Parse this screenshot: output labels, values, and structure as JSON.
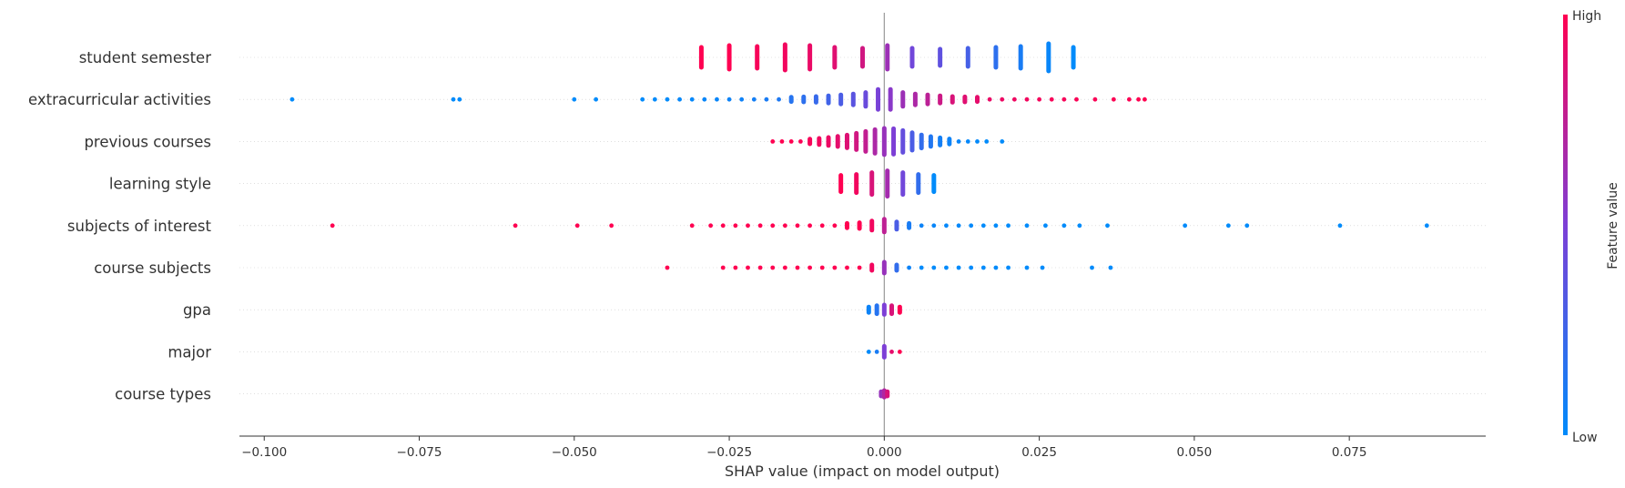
{
  "chart_data": {
    "type": "scatter",
    "subtype": "shap-beeswarm",
    "title": "",
    "xlabel": "SHAP value (impact on model output)",
    "xlim": [
      -0.104,
      0.097
    ],
    "xticks": [
      -0.1,
      -0.075,
      -0.05,
      -0.025,
      0.0,
      0.025,
      0.05,
      0.075
    ],
    "xtick_labels": [
      "−0.100",
      "−0.075",
      "−0.050",
      "−0.025",
      "0.000",
      "0.025",
      "0.050",
      "0.075"
    ],
    "zero_line": 0.0,
    "grid": false,
    "colorbar": {
      "label": "Feature value",
      "high_label": "High",
      "low_label": "Low",
      "low_color": "#008bfb",
      "mid_color": "#7d3fd6",
      "high_color": "#ff0051"
    },
    "features": [
      {
        "name": "student semester",
        "points": [
          [
            -0.0295,
            1.0,
            0.55
          ],
          [
            -0.025,
            1.0,
            0.65
          ],
          [
            -0.0205,
            0.97,
            0.6
          ],
          [
            -0.016,
            0.95,
            0.7
          ],
          [
            -0.012,
            0.92,
            0.65
          ],
          [
            -0.008,
            0.88,
            0.55
          ],
          [
            -0.0035,
            0.82,
            0.5
          ],
          [
            0.0005,
            0.62,
            0.65
          ],
          [
            0.0045,
            0.45,
            0.5
          ],
          [
            0.009,
            0.38,
            0.45
          ],
          [
            0.0135,
            0.28,
            0.5
          ],
          [
            0.018,
            0.18,
            0.55
          ],
          [
            0.022,
            0.1,
            0.6
          ],
          [
            0.0265,
            0.03,
            0.75
          ],
          [
            0.0305,
            0.0,
            0.55
          ]
        ]
      },
      {
        "name": "extracurricular activities",
        "points": [
          [
            -0.0955,
            0.0,
            0.02
          ],
          [
            -0.0695,
            0.0,
            0.02
          ],
          [
            -0.0685,
            0.0,
            0.02
          ],
          [
            -0.05,
            0.0,
            0.02
          ],
          [
            -0.0465,
            0.0,
            0.02
          ],
          [
            -0.039,
            0.0,
            0.03
          ],
          [
            -0.037,
            0.0,
            0.03
          ],
          [
            -0.035,
            0.0,
            0.03
          ],
          [
            -0.033,
            0.02,
            0.03
          ],
          [
            -0.031,
            0.02,
            0.04
          ],
          [
            -0.029,
            0.03,
            0.04
          ],
          [
            -0.027,
            0.03,
            0.05
          ],
          [
            -0.025,
            0.05,
            0.06
          ],
          [
            -0.023,
            0.06,
            0.07
          ],
          [
            -0.021,
            0.08,
            0.08
          ],
          [
            -0.019,
            0.1,
            0.09
          ],
          [
            -0.017,
            0.12,
            0.1
          ],
          [
            -0.015,
            0.15,
            0.12
          ],
          [
            -0.013,
            0.18,
            0.14
          ],
          [
            -0.011,
            0.22,
            0.16
          ],
          [
            -0.009,
            0.26,
            0.2
          ],
          [
            -0.007,
            0.3,
            0.25
          ],
          [
            -0.005,
            0.36,
            0.3
          ],
          [
            -0.003,
            0.42,
            0.38
          ],
          [
            -0.001,
            0.48,
            0.55
          ],
          [
            0.001,
            0.55,
            0.55
          ],
          [
            0.003,
            0.62,
            0.38
          ],
          [
            0.005,
            0.68,
            0.3
          ],
          [
            0.007,
            0.74,
            0.25
          ],
          [
            0.009,
            0.8,
            0.2
          ],
          [
            0.011,
            0.85,
            0.16
          ],
          [
            0.013,
            0.88,
            0.14
          ],
          [
            0.015,
            0.9,
            0.12
          ],
          [
            0.017,
            0.92,
            0.1
          ],
          [
            0.019,
            0.93,
            0.09
          ],
          [
            0.021,
            0.94,
            0.08
          ],
          [
            0.023,
            0.95,
            0.07
          ],
          [
            0.025,
            0.96,
            0.06
          ],
          [
            0.027,
            0.97,
            0.05
          ],
          [
            0.029,
            0.97,
            0.04
          ],
          [
            0.031,
            0.98,
            0.03
          ],
          [
            0.034,
            0.98,
            0.03
          ],
          [
            0.037,
            0.99,
            0.02
          ],
          [
            0.0395,
            0.99,
            0.02
          ],
          [
            0.041,
            1.0,
            0.02
          ],
          [
            0.042,
            1.0,
            0.02
          ]
        ]
      },
      {
        "name": "previous courses",
        "points": [
          [
            -0.018,
            1.0,
            0.03
          ],
          [
            -0.0165,
            1.0,
            0.05
          ],
          [
            -0.015,
            1.0,
            0.08
          ],
          [
            -0.0135,
            0.98,
            0.1
          ],
          [
            -0.012,
            0.97,
            0.13
          ],
          [
            -0.0105,
            0.95,
            0.17
          ],
          [
            -0.009,
            0.93,
            0.22
          ],
          [
            -0.0075,
            0.9,
            0.28
          ],
          [
            -0.006,
            0.87,
            0.35
          ],
          [
            -0.0045,
            0.82,
            0.45
          ],
          [
            -0.003,
            0.76,
            0.55
          ],
          [
            -0.0015,
            0.68,
            0.65
          ],
          [
            0.0,
            0.6,
            0.72
          ],
          [
            0.0015,
            0.5,
            0.7
          ],
          [
            0.003,
            0.4,
            0.6
          ],
          [
            0.0045,
            0.3,
            0.48
          ],
          [
            0.006,
            0.2,
            0.36
          ],
          [
            0.0075,
            0.13,
            0.27
          ],
          [
            0.009,
            0.08,
            0.2
          ],
          [
            0.0105,
            0.05,
            0.14
          ],
          [
            0.012,
            0.03,
            0.09
          ],
          [
            0.0135,
            0.02,
            0.06
          ],
          [
            0.015,
            0.01,
            0.04
          ],
          [
            0.0165,
            0.0,
            0.03
          ],
          [
            0.019,
            0.0,
            0.02
          ]
        ]
      },
      {
        "name": "learning style",
        "points": [
          [
            -0.007,
            1.0,
            0.45
          ],
          [
            -0.0045,
            0.95,
            0.5
          ],
          [
            -0.002,
            0.85,
            0.6
          ],
          [
            0.0005,
            0.65,
            0.7
          ],
          [
            0.003,
            0.45,
            0.6
          ],
          [
            0.0055,
            0.2,
            0.5
          ],
          [
            0.008,
            0.0,
            0.45
          ]
        ]
      },
      {
        "name": "subjects of interest",
        "points": [
          [
            -0.089,
            1.0,
            0.02
          ],
          [
            -0.0595,
            1.0,
            0.02
          ],
          [
            -0.0495,
            1.0,
            0.02
          ],
          [
            -0.044,
            1.0,
            0.02
          ],
          [
            -0.031,
            1.0,
            0.02
          ],
          [
            -0.028,
            1.0,
            0.03
          ],
          [
            -0.026,
            1.0,
            0.04
          ],
          [
            -0.024,
            1.0,
            0.04
          ],
          [
            -0.022,
            1.0,
            0.05
          ],
          [
            -0.02,
            1.0,
            0.05
          ],
          [
            -0.018,
            1.0,
            0.05
          ],
          [
            -0.016,
            1.0,
            0.06
          ],
          [
            -0.014,
            1.0,
            0.06
          ],
          [
            -0.012,
            1.0,
            0.07
          ],
          [
            -0.01,
            1.0,
            0.08
          ],
          [
            -0.008,
            1.0,
            0.09
          ],
          [
            -0.006,
            1.0,
            0.12
          ],
          [
            -0.004,
            1.0,
            0.16
          ],
          [
            -0.002,
            0.95,
            0.25
          ],
          [
            0.0,
            0.75,
            0.35
          ],
          [
            0.002,
            0.3,
            0.2
          ],
          [
            0.004,
            0.1,
            0.12
          ],
          [
            0.006,
            0.05,
            0.1
          ],
          [
            0.008,
            0.03,
            0.08
          ],
          [
            0.01,
            0.02,
            0.07
          ],
          [
            0.012,
            0.02,
            0.06
          ],
          [
            0.014,
            0.01,
            0.05
          ],
          [
            0.016,
            0.0,
            0.05
          ],
          [
            0.018,
            0.0,
            0.04
          ],
          [
            0.02,
            0.0,
            0.04
          ],
          [
            0.023,
            0.0,
            0.03
          ],
          [
            0.026,
            0.0,
            0.03
          ],
          [
            0.029,
            0.0,
            0.02
          ],
          [
            0.0315,
            0.0,
            0.02
          ],
          [
            0.036,
            0.0,
            0.02
          ],
          [
            0.0485,
            0.0,
            0.02
          ],
          [
            0.0555,
            0.0,
            0.02
          ],
          [
            0.0585,
            0.0,
            0.02
          ],
          [
            0.0735,
            0.0,
            0.02
          ],
          [
            0.0875,
            0.0,
            0.02
          ]
        ]
      },
      {
        "name": "course subjects",
        "points": [
          [
            -0.035,
            1.0,
            0.02
          ],
          [
            -0.026,
            1.0,
            0.02
          ],
          [
            -0.024,
            1.0,
            0.03
          ],
          [
            -0.022,
            1.0,
            0.03
          ],
          [
            -0.02,
            1.0,
            0.04
          ],
          [
            -0.018,
            1.0,
            0.04
          ],
          [
            -0.016,
            1.0,
            0.04
          ],
          [
            -0.014,
            1.0,
            0.05
          ],
          [
            -0.012,
            1.0,
            0.05
          ],
          [
            -0.01,
            1.0,
            0.06
          ],
          [
            -0.008,
            1.0,
            0.07
          ],
          [
            -0.006,
            1.0,
            0.08
          ],
          [
            -0.004,
            1.0,
            0.1
          ],
          [
            -0.002,
            0.95,
            0.15
          ],
          [
            0.0,
            0.6,
            0.3
          ],
          [
            0.002,
            0.2,
            0.15
          ],
          [
            0.004,
            0.05,
            0.1
          ],
          [
            0.006,
            0.0,
            0.08
          ],
          [
            0.008,
            0.0,
            0.07
          ],
          [
            0.01,
            0.0,
            0.06
          ],
          [
            0.012,
            0.0,
            0.05
          ],
          [
            0.014,
            0.0,
            0.05
          ],
          [
            0.016,
            0.0,
            0.04
          ],
          [
            0.018,
            0.0,
            0.04
          ],
          [
            0.02,
            0.0,
            0.03
          ],
          [
            0.023,
            0.0,
            0.03
          ],
          [
            0.0255,
            0.0,
            0.02
          ],
          [
            0.0335,
            0.0,
            0.02
          ],
          [
            0.0365,
            0.0,
            0.02
          ]
        ]
      },
      {
        "name": "gpa",
        "points": [
          [
            -0.0025,
            0.05,
            0.15
          ],
          [
            -0.0012,
            0.15,
            0.22
          ],
          [
            0.0,
            0.5,
            0.26
          ],
          [
            0.0012,
            0.85,
            0.22
          ],
          [
            0.0025,
            1.0,
            0.15
          ]
        ]
      },
      {
        "name": "major",
        "points": [
          [
            -0.0025,
            0.0,
            0.04
          ],
          [
            -0.0012,
            0.1,
            0.08
          ],
          [
            0.0,
            0.5,
            0.3
          ],
          [
            0.0012,
            0.9,
            0.08
          ],
          [
            0.0025,
            1.0,
            0.04
          ]
        ]
      },
      {
        "name": "course types",
        "points": [
          [
            -0.0005,
            0.6,
            0.12
          ],
          [
            0.0,
            0.7,
            0.18
          ],
          [
            0.0005,
            0.85,
            0.12
          ]
        ]
      }
    ]
  }
}
